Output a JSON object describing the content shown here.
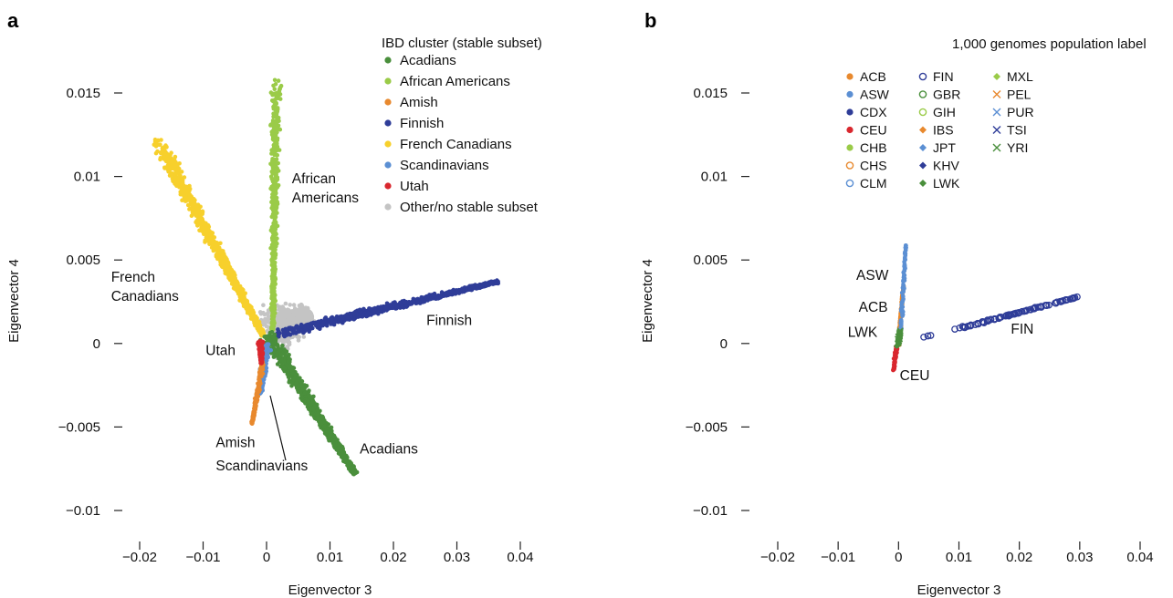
{
  "chart_data": [
    {
      "type": "scatter",
      "panel_label": "a",
      "xlabel": "Eigenvector 3",
      "ylabel": "Eigenvector 4",
      "xlim": [
        -0.025,
        0.045
      ],
      "ylim": [
        -0.0115,
        0.0165
      ],
      "x_ticks": [
        -0.02,
        -0.01,
        0,
        0.01,
        0.02,
        0.03,
        0.04
      ],
      "x_tick_labels": [
        "−0.02",
        "−0.01",
        "0",
        "0.01",
        "0.02",
        "0.03",
        "0.04"
      ],
      "y_ticks": [
        -0.01,
        -0.005,
        0,
        0.005,
        0.01,
        0.015
      ],
      "y_tick_labels": [
        "−0.01",
        "−0.005",
        "0",
        "0.005",
        "0.01",
        "0.015"
      ],
      "grid": false,
      "legend": {
        "title": "IBD cluster (stable subset)",
        "placement": "top-right",
        "entries": [
          {
            "label": "Acadians",
            "color": "#4a8f3c"
          },
          {
            "label": "African Americans",
            "color": "#9acb48"
          },
          {
            "label": "Amish",
            "color": "#e8892e"
          },
          {
            "label": "Finnish",
            "color": "#2f3d98"
          },
          {
            "label": "French Canadians",
            "color": "#f7d02c"
          },
          {
            "label": "Scandinavians",
            "color": "#5b8fd3"
          },
          {
            "label": "Utah",
            "color": "#d9272e"
          },
          {
            "label": "Other/no stable subset",
            "color": "#c4c4c4"
          }
        ]
      },
      "clusters": [
        {
          "name": "Other/no stable subset",
          "color": "#c4c4c4",
          "segments": [
            [
              0,
              0.0005,
              0.007,
              0.0018
            ]
          ],
          "spread": 0.0016,
          "count": 600
        },
        {
          "name": "French Canadians",
          "color": "#f7d02c",
          "segments": [
            [
              -0.0175,
              0.0123,
              -0.0005,
              0.0005
            ]
          ],
          "spread": 0.00045,
          "count": 900
        },
        {
          "name": "African Americans",
          "color": "#9acb48",
          "segments": [
            [
              0.0015,
              0.0158,
              0.001,
              0.0008
            ]
          ],
          "spread": 0.0003,
          "count": 600
        },
        {
          "name": "Finnish",
          "color": "#2f3d98",
          "segments": [
            [
              0.001,
              0.0005,
              0.0365,
              0.0037
            ]
          ],
          "spread": 0.0003,
          "count": 800
        },
        {
          "name": "Acadians",
          "color": "#4a8f3c",
          "segments": [
            [
              0,
              0.0005,
              0.014,
              -0.0078
            ]
          ],
          "spread": 0.00045,
          "count": 800
        },
        {
          "name": "Scandinavians",
          "color": "#5b8fd3",
          "segments": [
            [
              0,
              0,
              -0.001,
              -0.003
            ]
          ],
          "spread": 0.0003,
          "count": 200
        },
        {
          "name": "Amish",
          "color": "#e8892e",
          "segments": [
            [
              -0.0005,
              -0.001,
              -0.0023,
              -0.0048
            ]
          ],
          "spread": 0.00012,
          "count": 160
        },
        {
          "name": "Utah",
          "color": "#d9272e",
          "segments": [
            [
              -0.001,
              0.0002,
              -0.0008,
              -0.0012
            ]
          ],
          "spread": 0.0002,
          "count": 120
        }
      ],
      "annotations": [
        {
          "lines": [
            "African",
            "Americans"
          ],
          "x": 0.004,
          "y": 0.0096
        },
        {
          "lines": [
            "French",
            "Canadians"
          ],
          "x": -0.0245,
          "y": 0.0037
        },
        {
          "lines": [
            "Finnish"
          ],
          "x": 0.0252,
          "y": 0.0011
        },
        {
          "lines": [
            "Utah"
          ],
          "x": -0.0096,
          "y": -0.0007
        },
        {
          "lines": [
            "Amish"
          ],
          "x": -0.008,
          "y": -0.0062
        },
        {
          "lines": [
            "Scandinavians"
          ],
          "x": -0.008,
          "y": -0.0076
        },
        {
          "lines": [
            "Acadians"
          ],
          "x": 0.0147,
          "y": -0.0066
        }
      ]
    },
    {
      "type": "scatter",
      "panel_label": "b",
      "xlabel": "Eigenvector 3",
      "ylabel": "Eigenvector 4",
      "xlim": [
        -0.025,
        0.045
      ],
      "ylim": [
        -0.0115,
        0.0165
      ],
      "x_ticks": [
        -0.02,
        -0.01,
        0,
        0.01,
        0.02,
        0.03,
        0.04
      ],
      "x_tick_labels": [
        "−0.02",
        "−0.01",
        "0",
        "0.01",
        "0.02",
        "0.03",
        "0.04"
      ],
      "y_ticks": [
        -0.01,
        -0.005,
        0,
        0.005,
        0.01,
        0.015
      ],
      "y_tick_labels": [
        "−0.01",
        "−0.005",
        "0",
        "0.005",
        "0.01",
        "0.015"
      ],
      "grid": false,
      "legend": {
        "title": "1,000 genomes population label",
        "placement": "top-right",
        "columns": [
          [
            {
              "label": "ACB",
              "color": "#e8892e",
              "marker": "dot"
            },
            {
              "label": "ASW",
              "color": "#5b8fd3",
              "marker": "dot"
            },
            {
              "label": "CDX",
              "color": "#2f3d98",
              "marker": "dot"
            },
            {
              "label": "CEU",
              "color": "#d9272e",
              "marker": "dot"
            },
            {
              "label": "CHB",
              "color": "#9acb48",
              "marker": "dot"
            },
            {
              "label": "CHS",
              "color": "#e8892e",
              "marker": "circle"
            },
            {
              "label": "CLM",
              "color": "#5b8fd3",
              "marker": "circle"
            }
          ],
          [
            {
              "label": "FIN",
              "color": "#2f3d98",
              "marker": "circle"
            },
            {
              "label": "GBR",
              "color": "#4a8f3c",
              "marker": "circle"
            },
            {
              "label": "GIH",
              "color": "#9acb48",
              "marker": "circle"
            },
            {
              "label": "IBS",
              "color": "#e8892e",
              "marker": "diamond"
            },
            {
              "label": "JPT",
              "color": "#5b8fd3",
              "marker": "diamond"
            },
            {
              "label": "KHV",
              "color": "#2f3d98",
              "marker": "diamond"
            },
            {
              "label": "LWK",
              "color": "#4a8f3c",
              "marker": "diamond"
            }
          ],
          [
            {
              "label": "MXL",
              "color": "#9acb48",
              "marker": "diamond"
            },
            {
              "label": "PEL",
              "color": "#e8892e",
              "marker": "cross"
            },
            {
              "label": "PUR",
              "color": "#5b8fd3",
              "marker": "cross"
            },
            {
              "label": "TSI",
              "color": "#2f3d98",
              "marker": "cross"
            },
            {
              "label": "YRI",
              "color": "#4a8f3c",
              "marker": "cross"
            }
          ]
        ]
      },
      "clusters": [
        {
          "name": "CEU",
          "color": "#d9272e",
          "marker": "dot",
          "segments": [
            [
              -0.0003,
              -0.0001,
              -0.0008,
              -0.0016
            ]
          ],
          "spread": 0.0001,
          "count": 60
        },
        {
          "name": "ACB",
          "color": "#e8892e",
          "marker": "dot",
          "segments": [
            [
              0,
              -0.0002,
              0.0008,
              0.0035
            ]
          ],
          "spread": 8e-05,
          "count": 110
        },
        {
          "name": "ASW",
          "color": "#5b8fd3",
          "marker": "dot",
          "segments": [
            [
              0.0004,
              0.0008,
              0.0012,
              0.0059
            ]
          ],
          "spread": 8e-05,
          "count": 90
        },
        {
          "name": "LWK",
          "color": "#4a8f3c",
          "marker": "diamond",
          "segments": [
            [
              -0.0001,
              -0.0002,
              0.0003,
              0.0007
            ]
          ],
          "spread": 0.0001,
          "count": 40
        },
        {
          "name": "YRI",
          "color": "#4a8f3c",
          "marker": "cross",
          "segments": [
            [
              0,
              0,
              0.0003,
              0.0008
            ]
          ],
          "spread": 0.0001,
          "count": 30
        },
        {
          "name": "FIN",
          "color": "#2f3d98",
          "marker": "circle",
          "segments": [
            [
              0.009,
              0.0008,
              0.0298,
              0.0028
            ]
          ],
          "spread": 6e-05,
          "count": 95
        },
        {
          "name": "FIN",
          "color": "#2f3d98",
          "marker": "circle",
          "segments": [
            [
              0.004,
              0.0004,
              0.0058,
              0.0005
            ]
          ],
          "spread": 4e-05,
          "count": 3
        }
      ],
      "annotations": [
        {
          "lines": [
            "ASW"
          ],
          "x": -0.007,
          "y": 0.0038
        },
        {
          "lines": [
            "ACB"
          ],
          "x": -0.0066,
          "y": 0.0019
        },
        {
          "lines": [
            "LWK"
          ],
          "x": -0.0084,
          "y": 0.0004
        },
        {
          "lines": [
            "FIN"
          ],
          "x": 0.0186,
          "y": 0.0006
        },
        {
          "lines": [
            "CEU"
          ],
          "x": 0.0002,
          "y": -0.0022
        }
      ]
    }
  ]
}
